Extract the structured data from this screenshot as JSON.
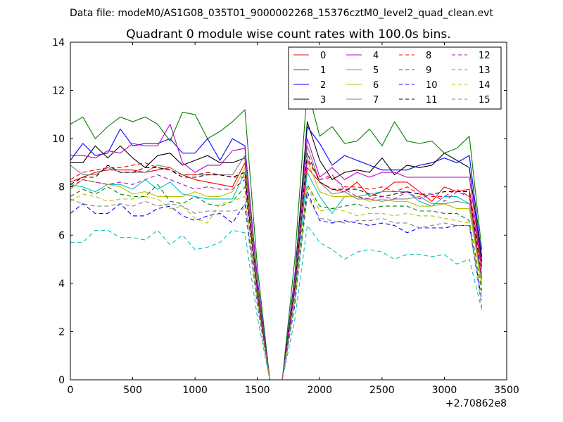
{
  "figure": {
    "suptitle": "Data file: modeM0/AS1G08_035T01_9000002268_15376cztM0_level2_quad_clean.evt"
  },
  "chart_data": {
    "type": "line",
    "title": "Quadrant 0 module wise count rates with 100.0s bins.",
    "xlabel": "",
    "ylabel": "",
    "x_offset_label": "+2.70862e8",
    "xlim": [
      0,
      3500
    ],
    "ylim": [
      0,
      14
    ],
    "xticks": [
      0,
      500,
      1000,
      1500,
      2000,
      2500,
      3000,
      3500
    ],
    "yticks": [
      0,
      2,
      4,
      6,
      8,
      10,
      12,
      14
    ],
    "grid": false,
    "legend_position": "upper-right",
    "legend_columns": 4,
    "x": [
      0,
      100,
      200,
      300,
      400,
      500,
      600,
      700,
      800,
      900,
      1000,
      1100,
      1200,
      1300,
      1400,
      1500,
      1600,
      1700,
      1800,
      1900,
      2000,
      2100,
      2200,
      2300,
      2400,
      2500,
      2600,
      2700,
      2800,
      2900,
      3000,
      3100,
      3200,
      3300
    ],
    "series": [
      {
        "name": "0",
        "color": "#ff0000",
        "style": "solid",
        "values": [
          8.2,
          8.4,
          8.6,
          8.7,
          8.7,
          8.7,
          8.6,
          8.7,
          8.8,
          8.5,
          8.3,
          8.2,
          8.1,
          8.0,
          9.0,
          3.7,
          0,
          0,
          3.9,
          8.8,
          8.2,
          7.9,
          7.8,
          8.2,
          7.6,
          7.8,
          8.2,
          8.2,
          7.8,
          7.4,
          8.0,
          7.8,
          7.9,
          4.6
        ]
      },
      {
        "name": "1",
        "color": "#008000",
        "style": "solid",
        "values": [
          10.6,
          10.9,
          10.0,
          10.5,
          10.9,
          10.7,
          10.9,
          10.6,
          9.9,
          11.1,
          11.0,
          10.0,
          10.3,
          10.7,
          11.2,
          4.7,
          0,
          0,
          5.0,
          12.1,
          10.1,
          10.5,
          9.8,
          9.9,
          10.4,
          9.7,
          10.7,
          9.9,
          9.8,
          9.9,
          9.4,
          9.6,
          10.1,
          5.4
        ]
      },
      {
        "name": "2",
        "color": "#0000ff",
        "style": "solid",
        "values": [
          9.1,
          9.8,
          9.3,
          9.4,
          10.4,
          9.7,
          9.8,
          9.8,
          10.0,
          9.4,
          9.4,
          10.0,
          9.1,
          10.0,
          9.7,
          4.2,
          0,
          0,
          4.3,
          10.5,
          9.8,
          8.9,
          9.3,
          9.1,
          8.9,
          8.7,
          8.7,
          8.7,
          8.9,
          9.0,
          9.2,
          9.0,
          9.3,
          5.1
        ]
      },
      {
        "name": "3",
        "color": "#000000",
        "style": "solid",
        "values": [
          9.0,
          9.0,
          9.7,
          9.2,
          9.7,
          9.2,
          8.8,
          9.3,
          9.4,
          8.9,
          9.1,
          9.3,
          9.0,
          9.0,
          9.2,
          4.0,
          0,
          0,
          4.2,
          10.7,
          9.1,
          8.3,
          8.6,
          8.7,
          8.6,
          9.2,
          8.5,
          8.9,
          8.8,
          8.9,
          9.4,
          9.1,
          8.8,
          4.9
        ]
      },
      {
        "name": "4",
        "color": "#bf00bf",
        "style": "solid",
        "values": [
          9.3,
          9.3,
          9.2,
          9.5,
          9.4,
          9.8,
          9.7,
          9.7,
          10.6,
          9.0,
          8.6,
          8.9,
          8.9,
          9.5,
          9.6,
          4.1,
          0,
          0,
          4.1,
          10.0,
          8.4,
          8.8,
          8.3,
          8.6,
          8.4,
          8.6,
          8.6,
          8.4,
          8.4,
          8.4,
          8.4,
          8.4,
          8.4,
          4.7
        ]
      },
      {
        "name": "5",
        "color": "#00bfbf",
        "style": "solid",
        "values": [
          8.1,
          8.0,
          7.8,
          8.1,
          8.1,
          7.9,
          8.3,
          7.9,
          8.2,
          7.7,
          7.6,
          7.5,
          7.5,
          7.5,
          8.6,
          3.6,
          0,
          0,
          3.7,
          8.6,
          7.6,
          6.9,
          7.6,
          7.6,
          7.7,
          7.8,
          7.8,
          7.8,
          7.4,
          7.2,
          7.6,
          7.6,
          7.3,
          4.0
        ]
      },
      {
        "name": "6",
        "color": "#bfbf00",
        "style": "solid",
        "values": [
          7.9,
          8.3,
          8.2,
          8.1,
          8.0,
          7.7,
          7.8,
          7.6,
          7.6,
          7.6,
          7.8,
          7.6,
          7.6,
          7.8,
          8.8,
          3.7,
          0,
          0,
          3.8,
          9.1,
          7.8,
          7.6,
          7.6,
          7.6,
          7.4,
          7.5,
          7.4,
          7.4,
          7.2,
          7.2,
          7.3,
          7.1,
          7.1,
          3.9
        ]
      },
      {
        "name": "7",
        "color": "#808080",
        "style": "solid",
        "values": [
          8.9,
          8.5,
          8.5,
          8.8,
          8.6,
          8.6,
          8.6,
          8.9,
          8.8,
          8.5,
          8.5,
          8.5,
          8.5,
          8.5,
          9.3,
          3.9,
          0,
          0,
          4.0,
          9.7,
          8.2,
          7.7,
          7.8,
          7.5,
          7.5,
          7.4,
          7.5,
          7.5,
          7.6,
          7.3,
          7.3,
          7.4,
          7.3,
          4.2
        ]
      },
      {
        "name": "8",
        "color": "#ff0000",
        "style": "dashed",
        "values": [
          8.3,
          8.6,
          8.7,
          8.8,
          8.8,
          8.9,
          9.0,
          8.8,
          8.7,
          8.5,
          8.5,
          8.6,
          8.5,
          8.4,
          8.4,
          3.7,
          0,
          0,
          3.8,
          9.1,
          8.3,
          8.4,
          8.0,
          8.0,
          7.9,
          8.0,
          7.8,
          8.0,
          7.7,
          7.6,
          7.6,
          7.9,
          7.6,
          4.2
        ]
      },
      {
        "name": "9",
        "color": "#008000",
        "style": "dashed",
        "values": [
          7.6,
          7.9,
          7.7,
          8.0,
          7.7,
          7.6,
          7.6,
          8.1,
          7.4,
          7.3,
          7.6,
          7.3,
          7.2,
          7.4,
          8.0,
          3.4,
          0,
          0,
          3.5,
          8.1,
          7.2,
          7.1,
          7.2,
          7.3,
          7.1,
          7.2,
          7.2,
          7.2,
          7.0,
          7.0,
          6.9,
          6.9,
          6.6,
          3.7
        ]
      },
      {
        "name": "10",
        "color": "#0000ff",
        "style": "dashed",
        "values": [
          6.9,
          7.3,
          6.9,
          6.9,
          7.3,
          6.8,
          6.8,
          7.1,
          7.2,
          6.8,
          6.6,
          6.8,
          6.9,
          6.5,
          7.3,
          3.1,
          0,
          0,
          3.1,
          7.8,
          6.6,
          6.5,
          6.6,
          6.5,
          6.4,
          6.5,
          6.4,
          6.1,
          6.3,
          6.3,
          6.3,
          6.4,
          6.4,
          3.3
        ]
      },
      {
        "name": "11",
        "color": "#000000",
        "style": "dashed",
        "values": [
          8.1,
          8.4,
          8.4,
          8.9,
          8.6,
          8.6,
          8.8,
          8.8,
          8.7,
          8.4,
          8.4,
          8.5,
          8.5,
          8.4,
          8.6,
          3.7,
          0,
          0,
          3.8,
          9.4,
          8.2,
          7.9,
          7.9,
          7.9,
          7.7,
          7.6,
          7.7,
          7.8,
          7.7,
          7.7,
          7.8,
          7.8,
          7.8,
          4.3
        ]
      },
      {
        "name": "12",
        "color": "#bf00bf",
        "style": "dashed",
        "values": [
          8.0,
          8.3,
          8.2,
          8.1,
          8.2,
          8.1,
          8.3,
          8.5,
          8.3,
          8.1,
          7.9,
          8.0,
          7.9,
          7.9,
          8.3,
          3.6,
          0,
          0,
          3.7,
          9.2,
          8.3,
          8.5,
          7.9,
          7.6,
          7.5,
          7.6,
          7.5,
          7.8,
          7.5,
          7.7,
          7.4,
          7.8,
          7.6,
          4.2
        ]
      },
      {
        "name": "13",
        "color": "#00bfbf",
        "style": "dashed",
        "values": [
          5.7,
          5.7,
          6.2,
          6.2,
          5.9,
          5.9,
          5.8,
          6.2,
          5.6,
          6.0,
          5.4,
          5.5,
          5.7,
          6.2,
          6.1,
          2.6,
          0,
          0,
          2.5,
          6.4,
          5.7,
          5.4,
          5.0,
          5.3,
          5.4,
          5.3,
          5.0,
          5.2,
          5.2,
          5.1,
          5.2,
          4.8,
          5.0,
          2.9
        ]
      },
      {
        "name": "14",
        "color": "#bfbf00",
        "style": "dashed",
        "values": [
          7.4,
          7.7,
          7.6,
          7.4,
          7.5,
          7.5,
          7.6,
          7.5,
          7.1,
          7.2,
          6.7,
          6.5,
          7.3,
          7.4,
          7.6,
          3.3,
          0,
          0,
          3.3,
          8.0,
          7.0,
          7.1,
          7.0,
          6.8,
          6.9,
          6.9,
          6.8,
          6.9,
          6.8,
          6.8,
          6.7,
          6.6,
          6.5,
          3.5
        ]
      },
      {
        "name": "15",
        "color": "#808080",
        "style": "dashed",
        "values": [
          7.5,
          7.3,
          7.2,
          7.2,
          7.3,
          7.2,
          7.4,
          7.2,
          7.3,
          7.2,
          6.9,
          7.0,
          7.0,
          7.0,
          7.1,
          3.1,
          0,
          0,
          3.2,
          7.6,
          6.7,
          6.6,
          6.5,
          6.6,
          6.6,
          6.7,
          6.5,
          6.5,
          6.3,
          6.4,
          6.5,
          6.4,
          6.4,
          3.0
        ]
      }
    ]
  }
}
